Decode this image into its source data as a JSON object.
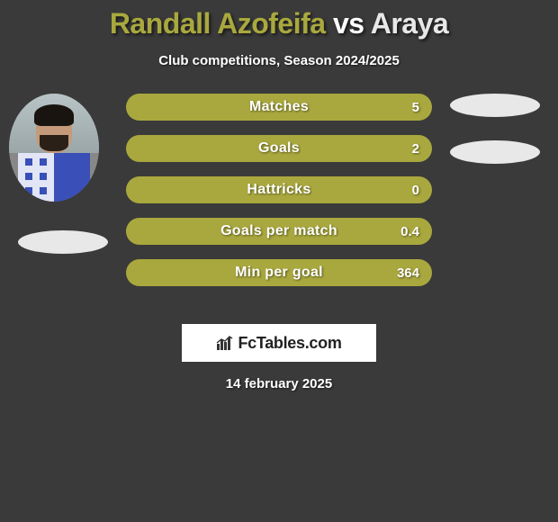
{
  "title": {
    "player1": "Randall Azofeifa",
    "vs": "vs",
    "player2": "Araya",
    "player1_color": "#a9a83e",
    "vs_color": "#ffffff",
    "player2_color": "#e8e8e8",
    "fontsize": 32
  },
  "subtitle": "Club competitions, Season 2024/2025",
  "bars": [
    {
      "label": "Matches",
      "value": "5",
      "fill_color": "#a9a83e",
      "right_oval_top": 0
    },
    {
      "label": "Goals",
      "value": "2",
      "fill_color": "#a9a83e",
      "right_oval_top": 52
    },
    {
      "label": "Hattricks",
      "value": "0",
      "fill_color": "#a9a83e",
      "right_oval_top": null
    },
    {
      "label": "Goals per match",
      "value": "0.4",
      "fill_color": "#a9a83e",
      "right_oval_top": null
    },
    {
      "label": "Min per goal",
      "value": "364",
      "fill_color": "#a9a83e",
      "right_oval_top": null
    }
  ],
  "bar_style": {
    "height": 30,
    "radius": 15,
    "gap": 16,
    "label_fontsize": 16,
    "value_fontsize": 15,
    "text_color": "#ffffff"
  },
  "oval_color": "#e8e8e8",
  "background_color": "#3a3a3a",
  "logo": {
    "text": "FcTables.com",
    "box_bg": "#ffffff",
    "text_color": "#222222",
    "chart_color": "#333333"
  },
  "date": "14 february 2025"
}
